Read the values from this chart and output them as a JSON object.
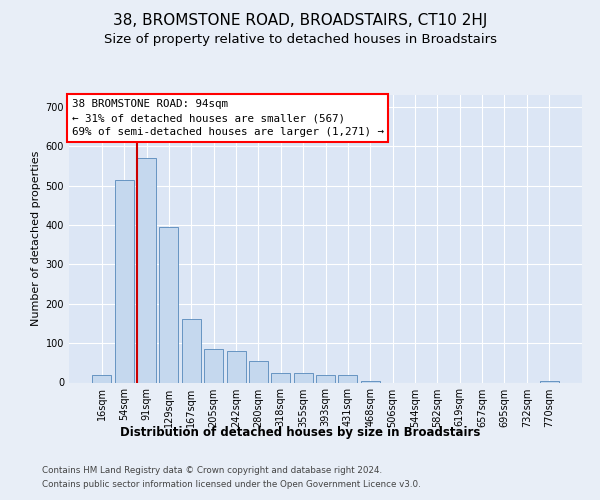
{
  "title": "38, BROMSTONE ROAD, BROADSTAIRS, CT10 2HJ",
  "subtitle": "Size of property relative to detached houses in Broadstairs",
  "xlabel": "Distribution of detached houses by size in Broadstairs",
  "ylabel": "Number of detached properties",
  "bar_labels": [
    "16sqm",
    "54sqm",
    "91sqm",
    "129sqm",
    "167sqm",
    "205sqm",
    "242sqm",
    "280sqm",
    "318sqm",
    "355sqm",
    "393sqm",
    "431sqm",
    "468sqm",
    "506sqm",
    "544sqm",
    "582sqm",
    "619sqm",
    "657sqm",
    "695sqm",
    "732sqm",
    "770sqm"
  ],
  "bar_values": [
    18,
    515,
    570,
    395,
    160,
    85,
    80,
    55,
    25,
    25,
    20,
    20,
    5,
    0,
    0,
    0,
    0,
    0,
    0,
    0,
    5
  ],
  "bar_color": "#c5d8ee",
  "bar_edge_color": "#5588bb",
  "vline_index": 2,
  "vline_color": "#cc0000",
  "annotation_line1": "38 BROMSTONE ROAD: 94sqm",
  "annotation_line2": "← 31% of detached houses are smaller (567)",
  "annotation_line3": "69% of semi-detached houses are larger (1,271) →",
  "ylim": [
    0,
    730
  ],
  "yticks": [
    0,
    100,
    200,
    300,
    400,
    500,
    600,
    700
  ],
  "bg_color": "#e8eef7",
  "plot_bg_color": "#dce6f5",
  "grid_color": "#ffffff",
  "footer1": "Contains HM Land Registry data © Crown copyright and database right 2024.",
  "footer2": "Contains public sector information licensed under the Open Government Licence v3.0.",
  "title_fontsize": 11,
  "subtitle_fontsize": 9.5,
  "ylabel_fontsize": 8,
  "xlabel_fontsize": 8.5,
  "tick_fontsize": 7,
  "footer_fontsize": 6.3,
  "annot_fontsize": 7.8
}
